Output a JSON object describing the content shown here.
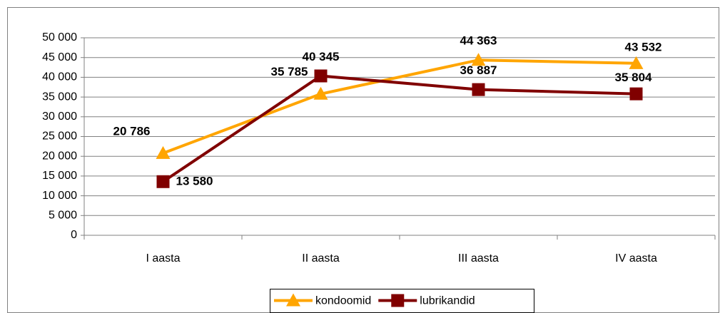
{
  "chart_data": {
    "type": "line",
    "categories": [
      "I aasta",
      "II aasta",
      "III aasta",
      "IV aasta"
    ],
    "series": [
      {
        "name": "kondoomid",
        "color": "#ffa500",
        "marker": "triangle",
        "values": [
          20786,
          35785,
          44363,
          43532
        ],
        "value_labels": [
          "20 786",
          "35 785",
          "44 363",
          "43 532"
        ]
      },
      {
        "name": "lubrikandid",
        "color": "#800000",
        "marker": "square",
        "values": [
          13580,
          40345,
          36887,
          35804
        ],
        "value_labels": [
          "13 580",
          "40 345",
          "36 887",
          "35 804"
        ]
      }
    ],
    "ylim": [
      0,
      50000
    ],
    "yticks": [
      0,
      {
        "value": 5000,
        "label": "5 000"
      },
      {
        "value": 10000,
        "label": "10 000"
      },
      {
        "value": 15000,
        "label": "15 000"
      },
      {
        "value": 20000,
        "label": "20 000"
      },
      {
        "value": 25000,
        "label": "25 000"
      },
      {
        "value": 30000,
        "label": "30 000"
      },
      {
        "value": 35000,
        "label": "35 000"
      },
      {
        "value": 40000,
        "label": "40 000"
      },
      {
        "value": 45000,
        "label": "45 000"
      },
      {
        "value": 50000,
        "label": "50 000"
      }
    ],
    "grid": true,
    "legend": "bottom"
  }
}
